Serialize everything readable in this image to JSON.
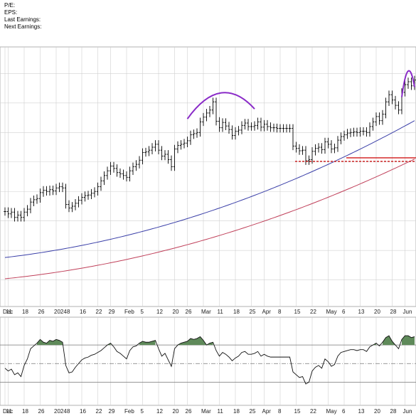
{
  "header": {
    "pe_label": "P/E:",
    "eps_label": "EPS:",
    "last_earnings_label": "Last Earnings:",
    "next_earnings_label": "Next Earnings:"
  },
  "colors": {
    "ma_short": "#3a3fa8",
    "ma_long": "#c0405a",
    "arc": "#8a2bc8",
    "support": "#d01818",
    "fill": "#5f8a5a",
    "grid": "#d0d0d0"
  },
  "chart_data": [
    {
      "type": "bar",
      "subtype": "ohlc",
      "x_tick_labels": [
        "Dec",
        "11",
        "18",
        "26",
        "2024",
        "8",
        "16",
        "22",
        "29",
        "Feb",
        "5",
        "12",
        "20",
        "26",
        "Mar",
        "11",
        "18",
        "25",
        "Apr",
        "8",
        "15",
        "22",
        "May",
        "6",
        "13",
        "20",
        "28",
        "Jun"
      ],
      "dates": [
        "2023-12-01",
        "2023-12-04",
        "2023-12-05",
        "2023-12-06",
        "2023-12-07",
        "2023-12-08",
        "2023-12-11",
        "2023-12-12",
        "2023-12-13",
        "2023-12-14",
        "2023-12-15",
        "2023-12-18",
        "2023-12-19",
        "2023-12-20",
        "2023-12-21",
        "2023-12-22",
        "2023-12-26",
        "2023-12-27",
        "2023-12-28",
        "2023-12-29",
        "2024-01-02",
        "2024-01-03",
        "2024-01-04",
        "2024-01-05",
        "2024-01-08",
        "2024-01-09",
        "2024-01-10",
        "2024-01-11",
        "2024-01-12",
        "2024-01-16",
        "2024-01-17",
        "2024-01-18",
        "2024-01-19",
        "2024-01-22",
        "2024-01-23",
        "2024-01-24",
        "2024-01-25",
        "2024-01-26",
        "2024-01-29",
        "2024-01-30",
        "2024-01-31",
        "2024-02-01",
        "2024-02-02",
        "2024-02-05",
        "2024-02-06",
        "2024-02-07",
        "2024-02-08",
        "2024-02-09",
        "2024-02-12",
        "2024-02-13",
        "2024-02-14",
        "2024-02-15",
        "2024-02-16",
        "2024-02-20",
        "2024-02-21",
        "2024-02-22",
        "2024-02-23",
        "2024-02-26",
        "2024-02-27",
        "2024-02-28",
        "2024-02-29",
        "2024-03-01",
        "2024-03-04",
        "2024-03-05",
        "2024-03-06",
        "2024-03-07",
        "2024-03-08",
        "2024-03-11",
        "2024-03-12",
        "2024-03-13",
        "2024-03-14",
        "2024-03-15",
        "2024-03-18",
        "2024-03-19",
        "2024-03-20",
        "2024-03-21",
        "2024-03-22",
        "2024-03-25",
        "2024-03-26",
        "2024-03-27",
        "2024-03-28",
        "2024-04-01",
        "2024-04-02",
        "2024-04-03",
        "2024-04-04",
        "2024-04-05",
        "2024-04-08",
        "2024-04-09",
        "2024-04-10",
        "2024-04-11",
        "2024-04-12",
        "2024-04-15",
        "2024-04-16",
        "2024-04-17",
        "2024-04-18",
        "2024-04-19",
        "2024-04-22",
        "2024-04-23",
        "2024-04-24",
        "2024-04-25",
        "2024-04-26",
        "2024-04-29",
        "2024-04-30",
        "2024-05-01",
        "2024-05-02",
        "2024-05-03",
        "2024-05-06",
        "2024-05-07",
        "2024-05-08",
        "2024-05-09",
        "2024-05-10",
        "2024-05-13",
        "2024-05-14",
        "2024-05-15",
        "2024-05-16",
        "2024-05-17",
        "2024-05-20",
        "2024-05-21",
        "2024-05-22",
        "2024-05-23",
        "2024-05-24",
        "2024-05-28",
        "2024-05-29",
        "2024-05-30",
        "2024-05-31",
        "2024-06-03",
        "2024-06-04",
        "2024-06-05",
        "2024-06-06"
      ],
      "close": [
        51.6,
        51.2,
        51.5,
        50.6,
        51.0,
        50.6,
        51.5,
        52.0,
        53.2,
        53.6,
        53.8,
        54.8,
        55.2,
        55.0,
        55.3,
        55.1,
        55.6,
        55.8,
        55.6,
        52.8,
        52.2,
        52.5,
        53.0,
        53.5,
        54.0,
        54.3,
        54.4,
        54.7,
        55.0,
        55.8,
        56.8,
        57.7,
        58.5,
        59.3,
        58.9,
        58.2,
        58.0,
        57.7,
        57.4,
        58.5,
        59.2,
        59.6,
        60.3,
        61.6,
        61.7,
        62.0,
        62.5,
        63.0,
        62.0,
        61.0,
        61.3,
        60.4,
        59.2,
        62.2,
        62.8,
        63.0,
        63.2,
        63.6,
        64.6,
        64.8,
        65.0,
        66.8,
        67.6,
        68.3,
        68.8,
        70.2,
        66.9,
        65.8,
        66.7,
        66.1,
        65.5,
        64.5,
        65.2,
        65.4,
        66.2,
        66.6,
        66.0,
        66.0,
        66.2,
        66.8,
        65.9,
        66.4,
        66.0,
        65.8,
        65.8,
        65.7,
        65.7,
        65.7,
        65.7,
        65.7,
        62.7,
        62.3,
        61.9,
        62.0,
        60.2,
        60.4,
        61.8,
        62.3,
        62.5,
        62.1,
        63.4,
        63.0,
        62.2,
        62.4,
        63.7,
        64.3,
        64.6,
        64.9,
        65.0,
        65.1,
        65.0,
        65.2,
        65.2,
        65.0,
        66.0,
        66.8,
        67.7,
        67.0,
        68.1,
        70.2,
        71.4,
        70.5,
        69.6,
        68.8,
        71.8,
        73.1,
        73.6,
        72.9,
        73.9
      ],
      "series": [
        {
          "name": "",
          "role": "short moving average",
          "start": 43.8,
          "end": 67.0
        },
        {
          "name": "",
          "role": "long moving average",
          "start": 40.2,
          "end": 60.5
        }
      ],
      "annotations": [
        {
          "kind": "arc",
          "from": "2024-02-26",
          "to": "2024-03-26"
        },
        {
          "kind": "arc",
          "from": "2024-05-31",
          "to": "2024-06-06"
        },
        {
          "kind": "horizontal-line",
          "style": "dashed",
          "value": 60.1,
          "from": "2024-04-16",
          "to": "2024-06-06"
        },
        {
          "kind": "horizontal-line",
          "style": "solid",
          "value": 60.7,
          "from": "2024-05-08",
          "to": "2024-06-06"
        }
      ],
      "ylim": [
        35.5,
        79.5
      ],
      "grid": true
    },
    {
      "type": "line",
      "panel": "oscillator",
      "x_tick_labels": [
        "Dec",
        "11",
        "18",
        "26",
        "2024",
        "8",
        "16",
        "22",
        "29",
        "Feb",
        "5",
        "12",
        "20",
        "26",
        "Mar",
        "11",
        "18",
        "25",
        "Apr",
        "8",
        "15",
        "22",
        "May",
        "6",
        "13",
        "20",
        "28",
        "Jun"
      ],
      "values": [
        45,
        42,
        44,
        38,
        40,
        36,
        48,
        55,
        66,
        69,
        72,
        76,
        73,
        72,
        75,
        74,
        76,
        75,
        73,
        48,
        40,
        41,
        46,
        50,
        54,
        56,
        57,
        59,
        60,
        62,
        64,
        67,
        70,
        72,
        68,
        63,
        61,
        58,
        55,
        64,
        68,
        69,
        72,
        74,
        73,
        73,
        74,
        75,
        66,
        58,
        61,
        54,
        47,
        66,
        70,
        72,
        73,
        74,
        77,
        76,
        77,
        79,
        75,
        70,
        72,
        73,
        64,
        58,
        62,
        60,
        57,
        53,
        56,
        58,
        62,
        63,
        60,
        60,
        61,
        63,
        58,
        60,
        58,
        57,
        57,
        57,
        57,
        57,
        57,
        57,
        41,
        38,
        35,
        36,
        28,
        30,
        42,
        46,
        48,
        45,
        55,
        52,
        47,
        49,
        58,
        62,
        63,
        64,
        65,
        65,
        64,
        65,
        65,
        63,
        68,
        70,
        72,
        69,
        73,
        78,
        80,
        74,
        70,
        66,
        76,
        80,
        80,
        78,
        79
      ],
      "reference_lines": [
        70,
        50,
        30
      ],
      "overbought_fill_above": 70,
      "ylim": [
        5,
        100
      ],
      "grid": true
    }
  ]
}
